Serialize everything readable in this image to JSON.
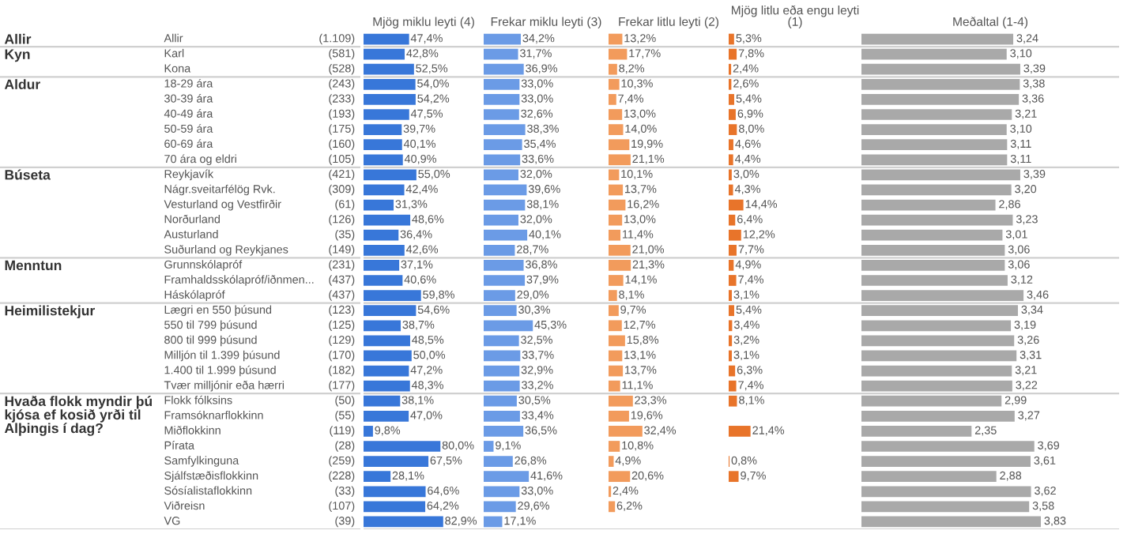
{
  "chart_data": [
    {
      "type": "other",
      "categories": [
        "Allir",
        "Karl",
        "Kona",
        "18-29 ára",
        "30-39 ára",
        "40-49 ára",
        "50-59 ára",
        "60-69 ára",
        "70 ára og eldri",
        "Reykjavík",
        "Nágr.sveitarfélög Rvk.",
        "Vesturland og Vestfirðir",
        "Norðurland",
        "Austurland",
        "Suðurland og Reykjanes",
        "Grunnskólapróf",
        "Framhaldsskólapróf/iðnmen...",
        "Háskólapróf",
        "Lægri en 550 þúsund",
        "550 til 799 þúsund",
        "800 til 999 þúsund",
        "Milljón til 1.399 þúsund",
        "1.400 til 1.999 þúsund",
        "Tvær milljónir eða hærri",
        "Flokk fólksins",
        "Framsóknarflokkinn",
        "Miðflokkinn",
        "Pírata",
        "Samfylkinguna",
        "Sjálfstæðisflokkinn",
        "Sósíalistaflokkinn",
        "Viðreisn",
        "VG"
      ],
      "values": [
        1109,
        581,
        528,
        243,
        233,
        193,
        175,
        160,
        105,
        421,
        309,
        61,
        126,
        35,
        149,
        231,
        437,
        437,
        123,
        125,
        129,
        170,
        182,
        177,
        50,
        55,
        119,
        28,
        259,
        228,
        33,
        107,
        39
      ],
      "value_labels": [
        "(1.109)",
        "(581)",
        "(528)",
        "(243)",
        "(233)",
        "(193)",
        "(175)",
        "(160)",
        "(105)",
        "(421)",
        "(309)",
        "(61)",
        "(126)",
        "(35)",
        "(149)",
        "(231)",
        "(437)",
        "(437)",
        "(123)",
        "(125)",
        "(129)",
        "(170)",
        "(182)",
        "(177)",
        "(50)",
        "(55)",
        "(119)",
        "(28)",
        "(259)",
        "(228)",
        "(33)",
        "(107)",
        "(39)"
      ],
      "annotations": [
        {
          "text": "Allir",
          "y": "Allir"
        },
        {
          "text": "Kyn",
          "y": "Karl"
        },
        {
          "text": "Aldur",
          "y": "18-29 ára"
        },
        {
          "text": "Búseta",
          "y": "Reykjavík"
        },
        {
          "text": "Menntun",
          "y": "Grunnskólapróf"
        },
        {
          "text": "Heimilistekjur",
          "y": "Lægri en 550 þúsund"
        },
        {
          "text": "Hvaða flokk myndir þú\nkjósa ef kosið yrði til\nAlþingis í dag?",
          "y": "Flokk fólksins"
        }
      ]
    },
    {
      "type": "bar",
      "orientation": "horizontal",
      "title": "Mjög miklu leyti (4)",
      "color": "#3877d9",
      "xlim": [
        0,
        125
      ],
      "values": [
        47.4,
        42.8,
        52.5,
        54.0,
        54.2,
        47.5,
        39.7,
        40.1,
        40.9,
        55.0,
        42.4,
        31.3,
        48.6,
        36.4,
        42.6,
        37.1,
        40.6,
        59.8,
        54.6,
        38.7,
        48.5,
        50.0,
        47.2,
        48.3,
        38.1,
        47.0,
        9.8,
        80.0,
        67.5,
        28.1,
        64.6,
        64.2,
        82.9
      ],
      "value_labels": [
        "47,4%",
        "42,8%",
        "52,5%",
        "54,0%",
        "54,2%",
        "47,5%",
        "39,7%",
        "40,1%",
        "40,9%",
        "55,0%",
        "42,4%",
        "31,3%",
        "48,6%",
        "36,4%",
        "42,6%",
        "37,1%",
        "40,6%",
        "59,8%",
        "54,6%",
        "38,7%",
        "48,5%",
        "50,0%",
        "47,2%",
        "48,3%",
        "38,1%",
        "47,0%",
        "9,8%",
        "80,0%",
        "67,5%",
        "28,1%",
        "64,6%",
        "64,2%",
        "82,9%"
      ]
    },
    {
      "type": "bar",
      "orientation": "horizontal",
      "title": "Frekar miklu leyti (3)",
      "color": "#6b9be6",
      "xlim": [
        0,
        115
      ],
      "values": [
        34.2,
        31.7,
        36.9,
        33.0,
        33.0,
        32.6,
        38.3,
        35.4,
        33.6,
        32.0,
        39.6,
        38.1,
        32.0,
        40.1,
        28.7,
        36.8,
        37.9,
        29.0,
        30.3,
        45.3,
        32.5,
        33.7,
        32.9,
        33.2,
        30.5,
        33.4,
        36.5,
        9.1,
        26.8,
        41.6,
        33.0,
        29.6,
        17.1
      ],
      "value_labels": [
        "34,2%",
        "31,7%",
        "36,9%",
        "33,0%",
        "33,0%",
        "32,6%",
        "38,3%",
        "35,4%",
        "33,6%",
        "32,0%",
        "39,6%",
        "38,1%",
        "32,0%",
        "40,1%",
        "28,7%",
        "36,8%",
        "37,9%",
        "29,0%",
        "30,3%",
        "45,3%",
        "32,5%",
        "33,7%",
        "32,9%",
        "33,2%",
        "30,5%",
        "33,4%",
        "36,5%",
        "9,1%",
        "26,8%",
        "41,6%",
        "33,0%",
        "29,6%",
        "17,1%"
      ]
    },
    {
      "type": "bar",
      "orientation": "horizontal",
      "title": "Frekar litlu leyti (2)",
      "color": "#f29b5c",
      "xlim": [
        0,
        115
      ],
      "values": [
        13.2,
        17.7,
        8.2,
        10.3,
        7.4,
        13.0,
        14.0,
        19.9,
        21.1,
        10.1,
        13.7,
        16.2,
        13.0,
        11.4,
        21.0,
        21.3,
        14.1,
        8.1,
        9.7,
        12.7,
        15.8,
        13.1,
        13.7,
        11.1,
        23.3,
        19.6,
        32.4,
        10.8,
        4.9,
        20.6,
        2.4,
        6.2,
        null
      ],
      "value_labels": [
        "13,2%",
        "17,7%",
        "8,2%",
        "10,3%",
        "7,4%",
        "13,0%",
        "14,0%",
        "19,9%",
        "21,1%",
        "10,1%",
        "13,7%",
        "16,2%",
        "13,0%",
        "11,4%",
        "21,0%",
        "21,3%",
        "14,1%",
        "8,1%",
        "9,7%",
        "12,7%",
        "15,8%",
        "13,1%",
        "13,7%",
        "11,1%",
        "23,3%",
        "19,6%",
        "32,4%",
        "10,8%",
        "4,9%",
        "20,6%",
        "2,4%",
        "6,2%",
        null
      ]
    },
    {
      "type": "bar",
      "orientation": "horizontal",
      "title": "Mjög litlu eða engu leyti\n(1)",
      "color": "#e8742a",
      "xlim": [
        0,
        130
      ],
      "values": [
        5.3,
        7.8,
        2.4,
        2.6,
        5.4,
        6.9,
        8.0,
        4.6,
        4.4,
        3.0,
        4.3,
        14.4,
        6.4,
        12.2,
        7.7,
        4.9,
        7.4,
        3.1,
        5.4,
        3.4,
        3.2,
        3.1,
        6.3,
        7.4,
        8.1,
        null,
        21.4,
        null,
        0.8,
        9.7,
        null,
        null,
        null
      ],
      "value_labels": [
        "5,3%",
        "7,8%",
        "2,4%",
        "2,6%",
        "5,4%",
        "6,9%",
        "8,0%",
        "4,6%",
        "4,4%",
        "3,0%",
        "4,3%",
        "14,4%",
        "6,4%",
        "12,2%",
        "7,7%",
        "4,9%",
        "7,4%",
        "3,1%",
        "5,4%",
        "3,4%",
        "3,2%",
        "3,1%",
        "6,3%",
        "7,4%",
        "8,1%",
        null,
        "21,4%",
        null,
        "0,8%",
        "9,7%",
        null,
        null,
        null
      ]
    },
    {
      "type": "bar",
      "orientation": "horizontal",
      "title": "Meðaltal (1-4)",
      "color": "#a9a9a9",
      "xlim": [
        0,
        5.5
      ],
      "values": [
        3.24,
        3.1,
        3.39,
        3.38,
        3.36,
        3.21,
        3.1,
        3.11,
        3.11,
        3.39,
        3.2,
        2.86,
        3.23,
        3.01,
        3.06,
        3.06,
        3.12,
        3.46,
        3.34,
        3.19,
        3.26,
        3.31,
        3.21,
        3.22,
        2.99,
        3.27,
        2.35,
        3.69,
        3.61,
        2.88,
        3.62,
        3.58,
        3.83
      ],
      "value_labels": [
        "3,24",
        "3,10",
        "3,39",
        "3,38",
        "3,36",
        "3,21",
        "3,10",
        "3,11",
        "3,11",
        "3,39",
        "3,20",
        "2,86",
        "3,23",
        "3,01",
        "3,06",
        "3,06",
        "3,12",
        "3,46",
        "3,34",
        "3,19",
        "3,26",
        "3,31",
        "3,21",
        "3,22",
        "2,99",
        "3,27",
        "2,35",
        "3,69",
        "3,61",
        "2,88",
        "3,62",
        "3,58",
        "3,83"
      ]
    }
  ]
}
